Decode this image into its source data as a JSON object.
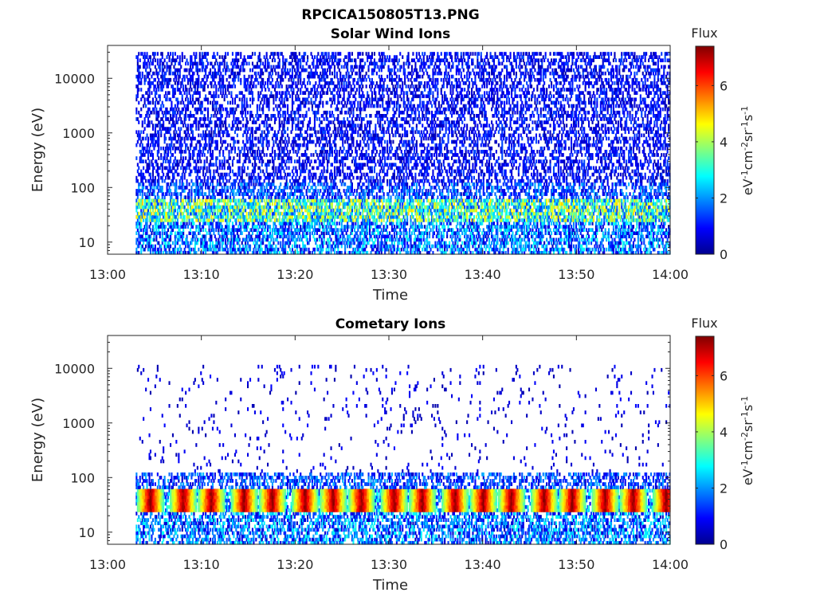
{
  "figure": {
    "title_line1": "RPCICA150805T13.PNG"
  },
  "chart_data": [
    {
      "type": "heatmap",
      "title": "Solar Wind Ions",
      "xlabel": "Time",
      "ylabel": "Energy (eV)",
      "x_ticks": [
        "13:00",
        "13:10",
        "13:20",
        "13:30",
        "13:40",
        "13:50",
        "14:00"
      ],
      "x_range": [
        "13:00",
        "14:00"
      ],
      "y_scale": "log",
      "y_ticks": [
        "10",
        "100",
        "1000",
        "10000"
      ],
      "y_range": [
        6,
        40000
      ],
      "data_start": "13:03",
      "grid": false,
      "colorbar": {
        "label": "Flux",
        "unit": "eV-1cm-2sr-1s-1",
        "ticks": [
          "0",
          "2",
          "4",
          "6"
        ],
        "range": [
          0,
          7.4
        ],
        "colormap": "jet"
      },
      "features": {
        "main_band_energy_eV": [
          25,
          60
        ],
        "main_band_peak_flux": 5,
        "background_energy_eV": [
          100,
          30000
        ],
        "background_flux": [
          0.3,
          1.5
        ]
      }
    },
    {
      "type": "heatmap",
      "title": "Cometary Ions",
      "xlabel": "Time",
      "ylabel": "Energy (eV)",
      "x_ticks": [
        "13:00",
        "13:10",
        "13:20",
        "13:30",
        "13:40",
        "13:50",
        "14:00"
      ],
      "x_range": [
        "13:00",
        "14:00"
      ],
      "y_scale": "log",
      "y_ticks": [
        "10",
        "100",
        "1000",
        "10000"
      ],
      "y_range": [
        6,
        40000
      ],
      "data_start": "13:03",
      "grid": false,
      "colorbar": {
        "label": "Flux",
        "unit": "eV-1cm-2sr-1s-1",
        "ticks": [
          "0",
          "2",
          "4",
          "6"
        ],
        "range": [
          0,
          7.4
        ],
        "colormap": "jet"
      },
      "features": {
        "main_band_energy_eV": [
          25,
          60
        ],
        "main_band_peak_flux": 7,
        "burst_times": [
          "13:04:30",
          "13:08:00",
          "13:11:00",
          "13:14:30",
          "13:17:30",
          "13:21:00",
          "13:24:00",
          "13:27:00",
          "13:30:30",
          "13:33:30",
          "13:37:00",
          "13:40:00",
          "13:43:00",
          "13:46:30",
          "13:49:30",
          "13:53:00",
          "13:56:00",
          "13:59:30"
        ],
        "background_energy_eV": [
          100,
          12000
        ],
        "background_flux": [
          0.3,
          1.0
        ]
      }
    }
  ]
}
